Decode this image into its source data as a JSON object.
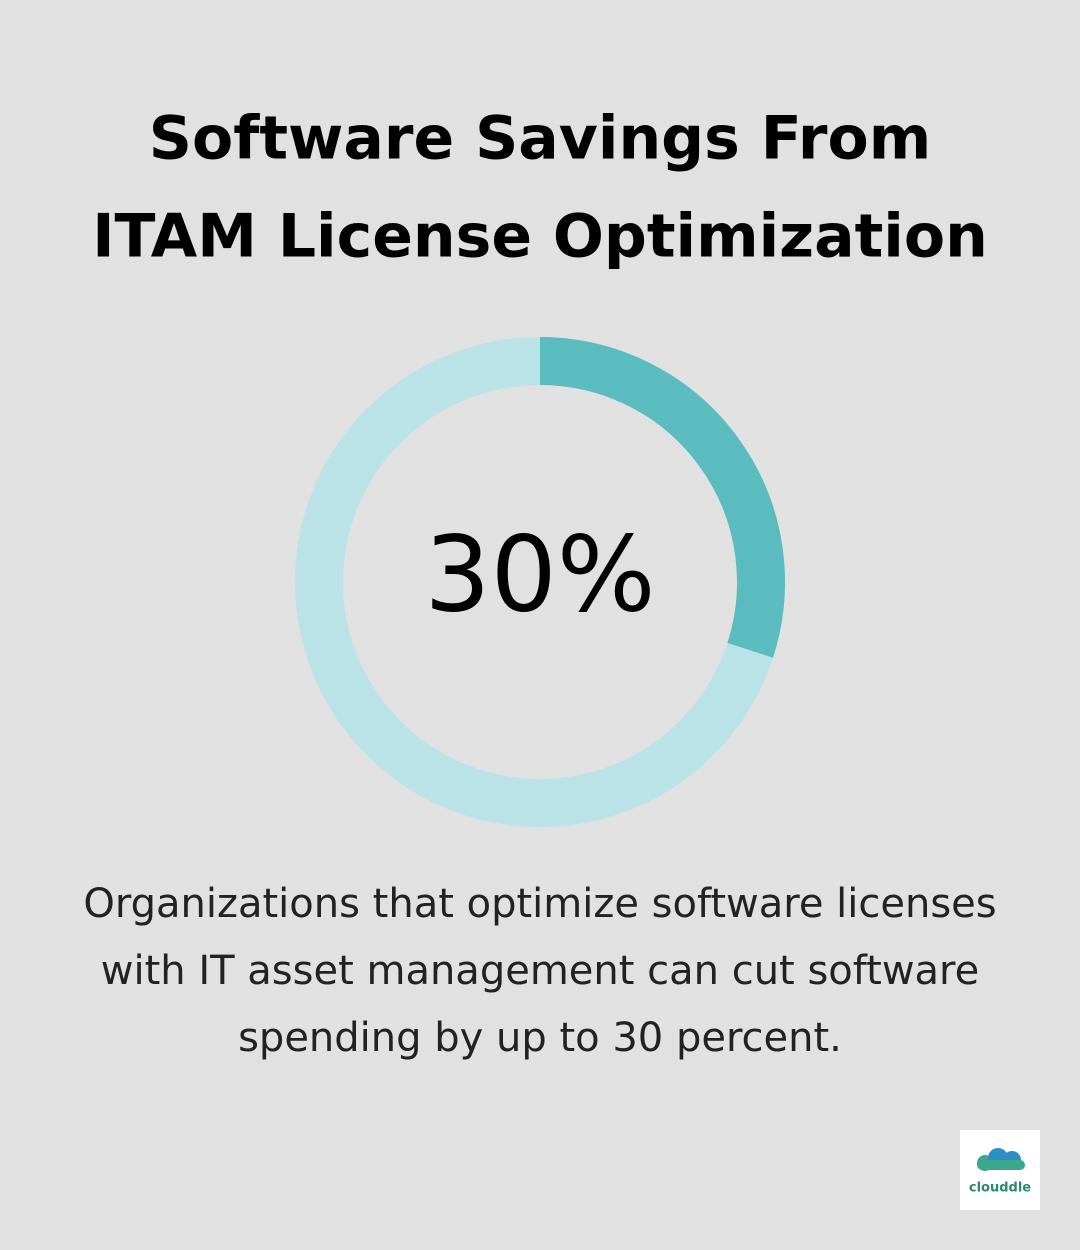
{
  "chart_data": {
    "type": "donut",
    "title": [
      "Software Savings From",
      "ITAM License Optimization"
    ],
    "values": [
      30
    ],
    "value_labels": [
      "30%"
    ],
    "color": "#5bbcc0",
    "track_color": "#b9e3e6",
    "description": [
      "Organizations that optimize software licenses",
      "with IT asset management can cut software",
      "spending by up to 30 percent."
    ],
    "logo": "clouddle"
  }
}
